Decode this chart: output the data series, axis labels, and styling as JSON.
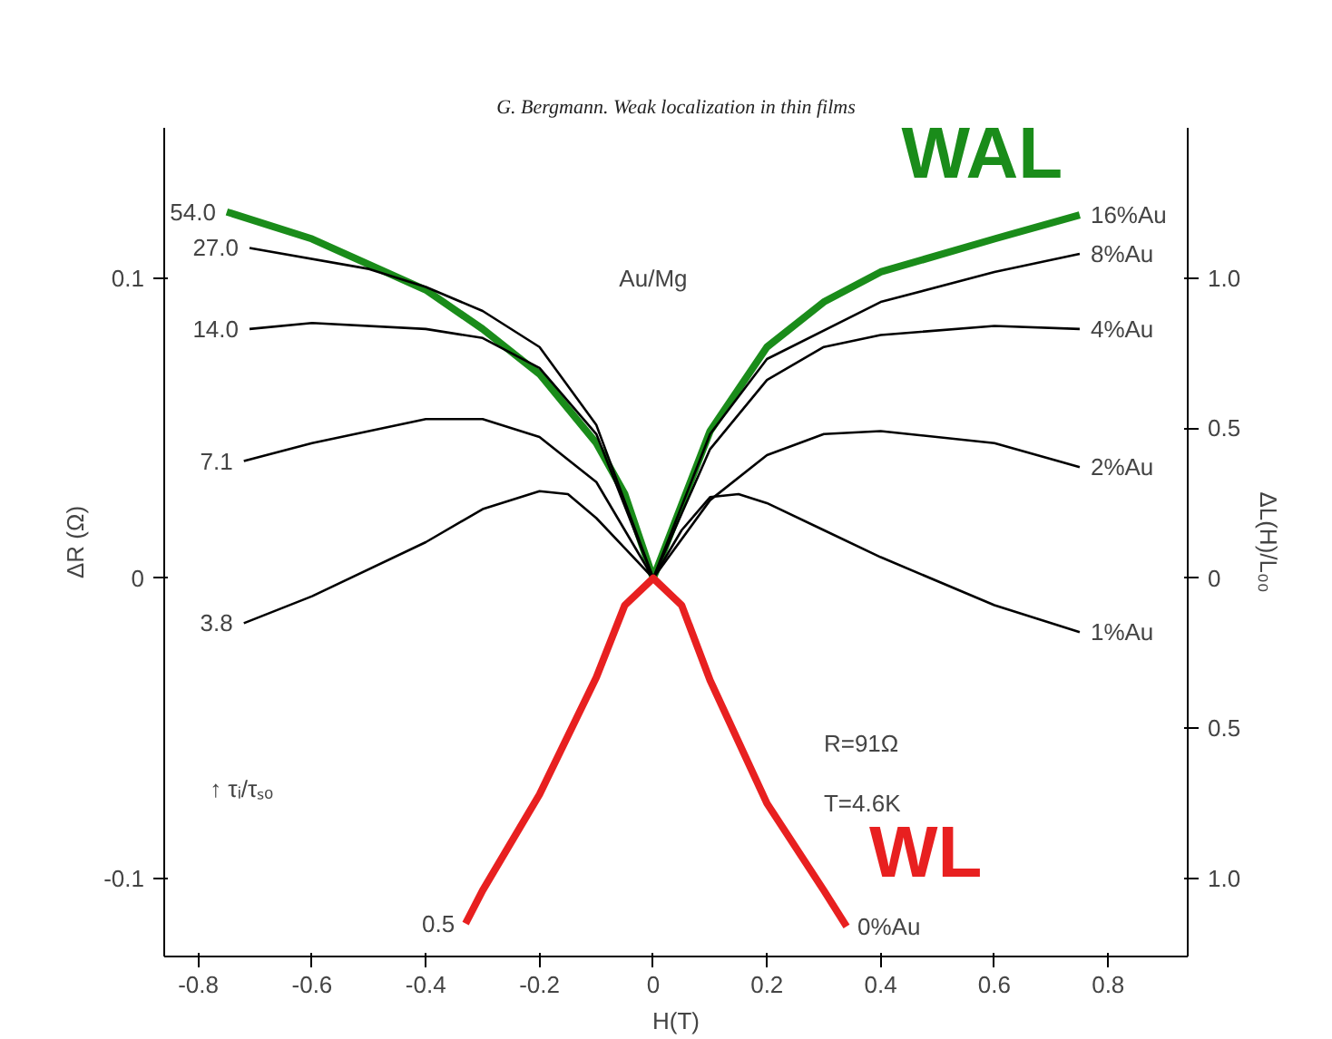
{
  "chart_data": {
    "type": "line",
    "title": "G. Bergmann. Weak localization in thin films",
    "xlabel": "H(T)",
    "ylabel": "ΔR (Ω)",
    "y2label": "ΔL(H)/L₀₀",
    "xlim": [
      -0.86,
      0.94
    ],
    "xticks": [
      -0.8,
      -0.6,
      -0.4,
      -0.2,
      0,
      0.2,
      0.4,
      0.6,
      0.8
    ],
    "ylim": [
      -0.126,
      0.15
    ],
    "yticks": [
      -0.1,
      0,
      0.1
    ],
    "y2lim": [
      -1.26,
      1.5
    ],
    "y2ticks": [
      {
        "value": -1.0,
        "label": "1.0"
      },
      {
        "value": -0.5,
        "label": "0.5"
      },
      0,
      0.5,
      {
        "value": 1.0,
        "label": "1.0"
      }
    ],
    "grid": false,
    "marker": "none",
    "line_style": "solid",
    "series": [
      {
        "name": "54.0",
        "color": "#1a8c1a",
        "x": [
          -0.75,
          -0.6,
          -0.4,
          -0.3,
          -0.2,
          -0.1,
          -0.05,
          0,
          0.1,
          0.2,
          0.3,
          0.4,
          0.6,
          0.75
        ],
        "values": [
          0.122,
          0.113,
          0.096,
          0.083,
          0.068,
          0.045,
          0.028,
          0,
          0.049,
          0.077,
          0.092,
          0.102,
          0.113,
          0.121
        ]
      },
      {
        "name": "27.0",
        "color": "#000000",
        "x": [
          -0.71,
          -0.5,
          -0.4,
          -0.3,
          -0.2,
          -0.1,
          0,
          0.1,
          0.2,
          0.4,
          0.6,
          0.75
        ],
        "values": [
          0.11,
          0.103,
          0.097,
          0.089,
          0.077,
          0.051,
          0,
          0.048,
          0.073,
          0.092,
          0.102,
          0.108
        ]
      },
      {
        "name": "14.0",
        "color": "#000000",
        "x": [
          -0.71,
          -0.6,
          -0.4,
          -0.3,
          -0.2,
          -0.1,
          0,
          0.1,
          0.2,
          0.3,
          0.4,
          0.6,
          0.75
        ],
        "values": [
          0.083,
          0.085,
          0.083,
          0.08,
          0.07,
          0.048,
          0,
          0.043,
          0.066,
          0.077,
          0.081,
          0.084,
          0.083
        ]
      },
      {
        "name": "7.1",
        "color": "#000000",
        "x": [
          -0.72,
          -0.6,
          -0.4,
          -0.3,
          -0.2,
          -0.1,
          0,
          0.1,
          0.2,
          0.3,
          0.4,
          0.6,
          0.75
        ],
        "values": [
          0.039,
          0.045,
          0.053,
          0.053,
          0.047,
          0.032,
          0,
          0.026,
          0.041,
          0.048,
          0.049,
          0.045,
          0.037
        ]
      },
      {
        "name": "3.8",
        "color": "#000000",
        "x": [
          -0.72,
          -0.6,
          -0.4,
          -0.3,
          -0.2,
          -0.15,
          -0.1,
          -0.05,
          0,
          0.05,
          0.1,
          0.15,
          0.2,
          0.3,
          0.4,
          0.6,
          0.75
        ],
        "values": [
          -0.015,
          -0.006,
          0.012,
          0.023,
          0.029,
          0.028,
          0.02,
          0.01,
          0,
          0.016,
          0.027,
          0.028,
          0.025,
          0.016,
          0.007,
          -0.009,
          -0.018
        ]
      },
      {
        "name": "0.5",
        "color": "#e82020",
        "x": [
          -0.33,
          -0.3,
          -0.2,
          -0.1,
          -0.05,
          0,
          0.05,
          0.1,
          0.2,
          0.3,
          0.34
        ],
        "values": [
          -0.115,
          -0.104,
          -0.072,
          -0.033,
          -0.009,
          0,
          -0.009,
          -0.034,
          -0.075,
          -0.104,
          -0.116
        ]
      }
    ],
    "annotations": [
      "16%Au",
      "8%Au",
      "4%Au",
      "2%Au",
      "1%Au",
      "0%Au",
      "WAL",
      "WL",
      "Au/Mg",
      "R=91Ω",
      "T=4.6K",
      "↑ τᵢ/τₛₒ"
    ]
  }
}
